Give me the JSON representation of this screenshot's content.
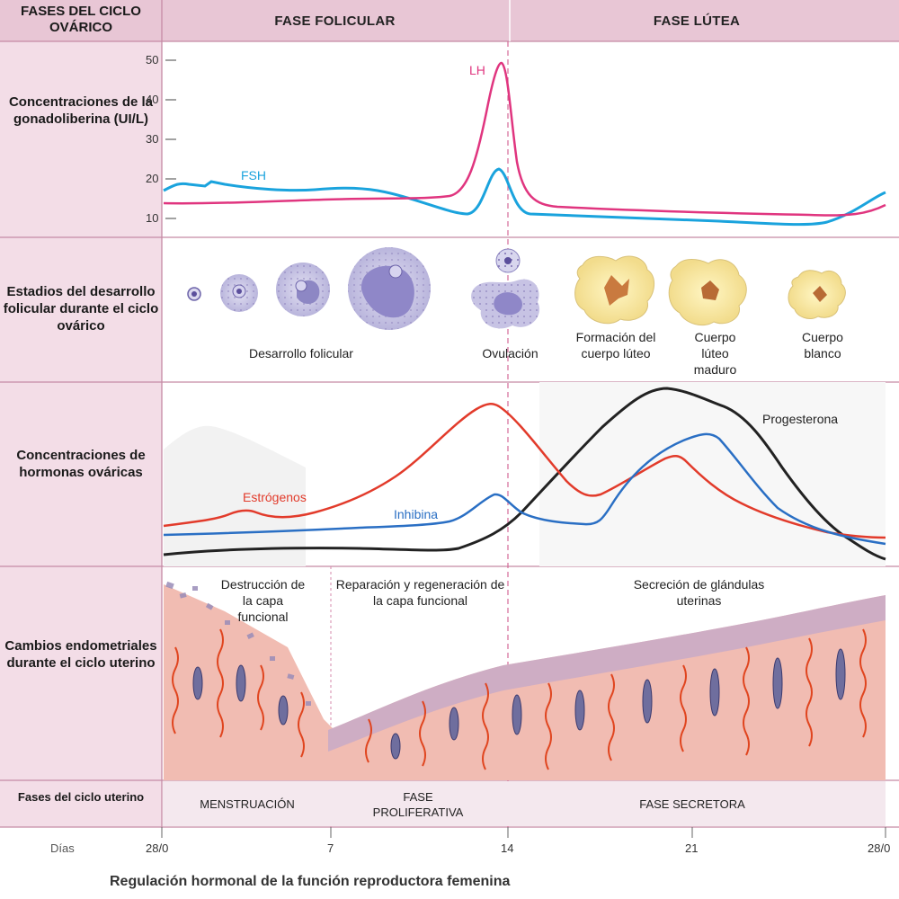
{
  "header": {
    "corner_title": "FASES DEL CICLO OVÁRICO",
    "phase_follicular": "FASE FOLICULAR",
    "phase_luteal": "FASE LÚTEA"
  },
  "rows": {
    "gonado_label": "Concentraciones de la gonadoliberina (UI/L)",
    "follicle_label": "Estadios del desarrollo folicular durante el ciclo ovárico",
    "ovarian_label": "Concentraciones de hormonas ováricas",
    "endo_label": "Cambios endometriales durante el ciclo uterino",
    "uterine_phases_label": "Fases del ciclo uterino"
  },
  "gonado_chart": {
    "y_ticks": [
      "50",
      "40",
      "30",
      "20",
      "10"
    ],
    "lh_label": "LH",
    "fsh_label": "FSH"
  },
  "follicle_captions": {
    "development": "Desarrollo folicular",
    "ovulation": "Ovulación",
    "formation": "Formación del cuerpo lúteo",
    "mature": "Cuerpo lúteo maduro",
    "albicans": "Cuerpo blanco"
  },
  "ovarian_chart": {
    "estrogen_label": "Estrógenos",
    "inhibin_label": "Inhibina",
    "progesterone_label": "Progesterona"
  },
  "endometrium_captions": {
    "destruction": "Destrucción de la capa funcional",
    "repair": "Reparación y regeneración de la capa funcional",
    "secretion": "Secreción de glándulas uterinas"
  },
  "uterine_phases": {
    "menstruation": "MENSTRUACIÓN",
    "proliferative": "FASE PROLIFERATIVA",
    "secretory": "FASE SECRETORA"
  },
  "days": {
    "label": "Días",
    "ticks": [
      "28/0",
      "7",
      "14",
      "21",
      "28/0"
    ]
  },
  "caption": "Regulación hormonal de la función reproductora femenina",
  "colors": {
    "lh": "#e0357f",
    "fsh": "#1aa3dd",
    "estrogen": "#e23b2b",
    "inhibin": "#2a6fc4",
    "progesterone": "#222222",
    "panel_pink": "#f3dce6",
    "header_pink": "#e6c3d3"
  }
}
